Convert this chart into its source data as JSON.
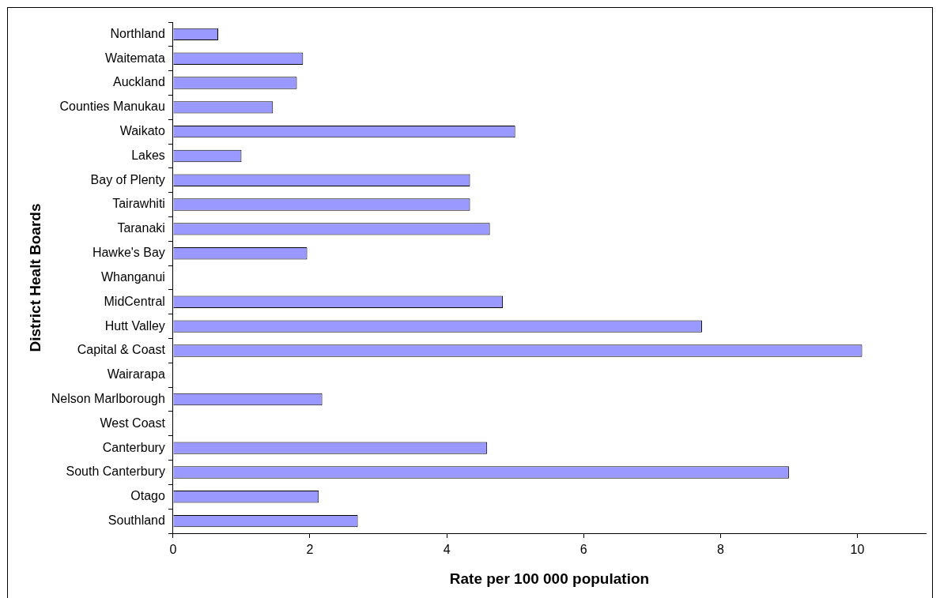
{
  "chart_data": {
    "type": "bar",
    "orientation": "horizontal",
    "xlabel": "Rate per 100 000 population",
    "ylabel": "District Healt Boards",
    "categories": [
      "Northland",
      "Waitemata",
      "Auckland",
      "Counties Manukau",
      "Waikato",
      "Lakes",
      "Bay of Plenty",
      "Tairawhiti",
      "Taranaki",
      "Hawke's Bay",
      "Whanganui",
      "MidCentral",
      "Hutt Valley",
      "Capital & Coast",
      "Wairarapa",
      "Nelson Marlborough",
      "West Coast",
      "Canterbury",
      "South Canterbury",
      "Otago",
      "Southland"
    ],
    "values": [
      0.66,
      1.9,
      1.81,
      1.46,
      5.0,
      1.0,
      4.34,
      4.34,
      4.63,
      1.96,
      0,
      4.82,
      7.73,
      10.07,
      0,
      2.18,
      0,
      4.59,
      9.0,
      2.13,
      2.7
    ],
    "color": "#9999ff",
    "xlim": [
      0,
      11
    ],
    "xticks": [
      0,
      2,
      4,
      6,
      8,
      10
    ],
    "grid": false,
    "legend": false
  }
}
